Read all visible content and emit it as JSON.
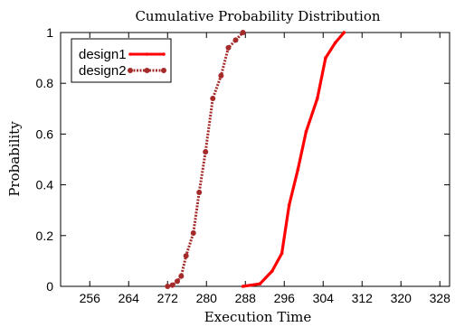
{
  "chart_data": {
    "type": "line",
    "title": "Cumulative Probability Distribution",
    "xlabel": "Execution Time",
    "ylabel": "Probability",
    "xlim": [
      250,
      330
    ],
    "ylim": [
      0,
      1
    ],
    "xticks": [
      256,
      264,
      272,
      280,
      288,
      296,
      304,
      312,
      320,
      328
    ],
    "yticks": [
      0,
      0.2,
      0.4,
      0.6,
      0.8,
      1
    ],
    "ytick_labels": [
      "0",
      "0.2",
      "0.4",
      "0.6",
      "0.8",
      "1"
    ],
    "grid": false,
    "legend_position": "top-left",
    "series": [
      {
        "name": "design1",
        "color": "#ff0000",
        "style": "solid",
        "marker": "small-dot",
        "points": [
          [
            287.5,
            0.0
          ],
          [
            291.0,
            0.01
          ],
          [
            293.5,
            0.06
          ],
          [
            295.5,
            0.13
          ],
          [
            297.0,
            0.32
          ],
          [
            298.8,
            0.46
          ],
          [
            300.5,
            0.61
          ],
          [
            302.8,
            0.74
          ],
          [
            304.5,
            0.9
          ],
          [
            306.5,
            0.96
          ],
          [
            308.3,
            1.0
          ]
        ]
      },
      {
        "name": "design2",
        "color": "#a52a2a",
        "style": "dotted",
        "marker": "circle",
        "points": [
          [
            272.0,
            0.0
          ],
          [
            273.0,
            0.005
          ],
          [
            274.0,
            0.02
          ],
          [
            274.8,
            0.04
          ],
          [
            275.8,
            0.12
          ],
          [
            277.3,
            0.21
          ],
          [
            278.5,
            0.37
          ],
          [
            279.8,
            0.53
          ],
          [
            281.3,
            0.74
          ],
          [
            283.0,
            0.83
          ],
          [
            284.5,
            0.94
          ],
          [
            286.0,
            0.97
          ],
          [
            287.5,
            1.0
          ]
        ]
      }
    ]
  }
}
